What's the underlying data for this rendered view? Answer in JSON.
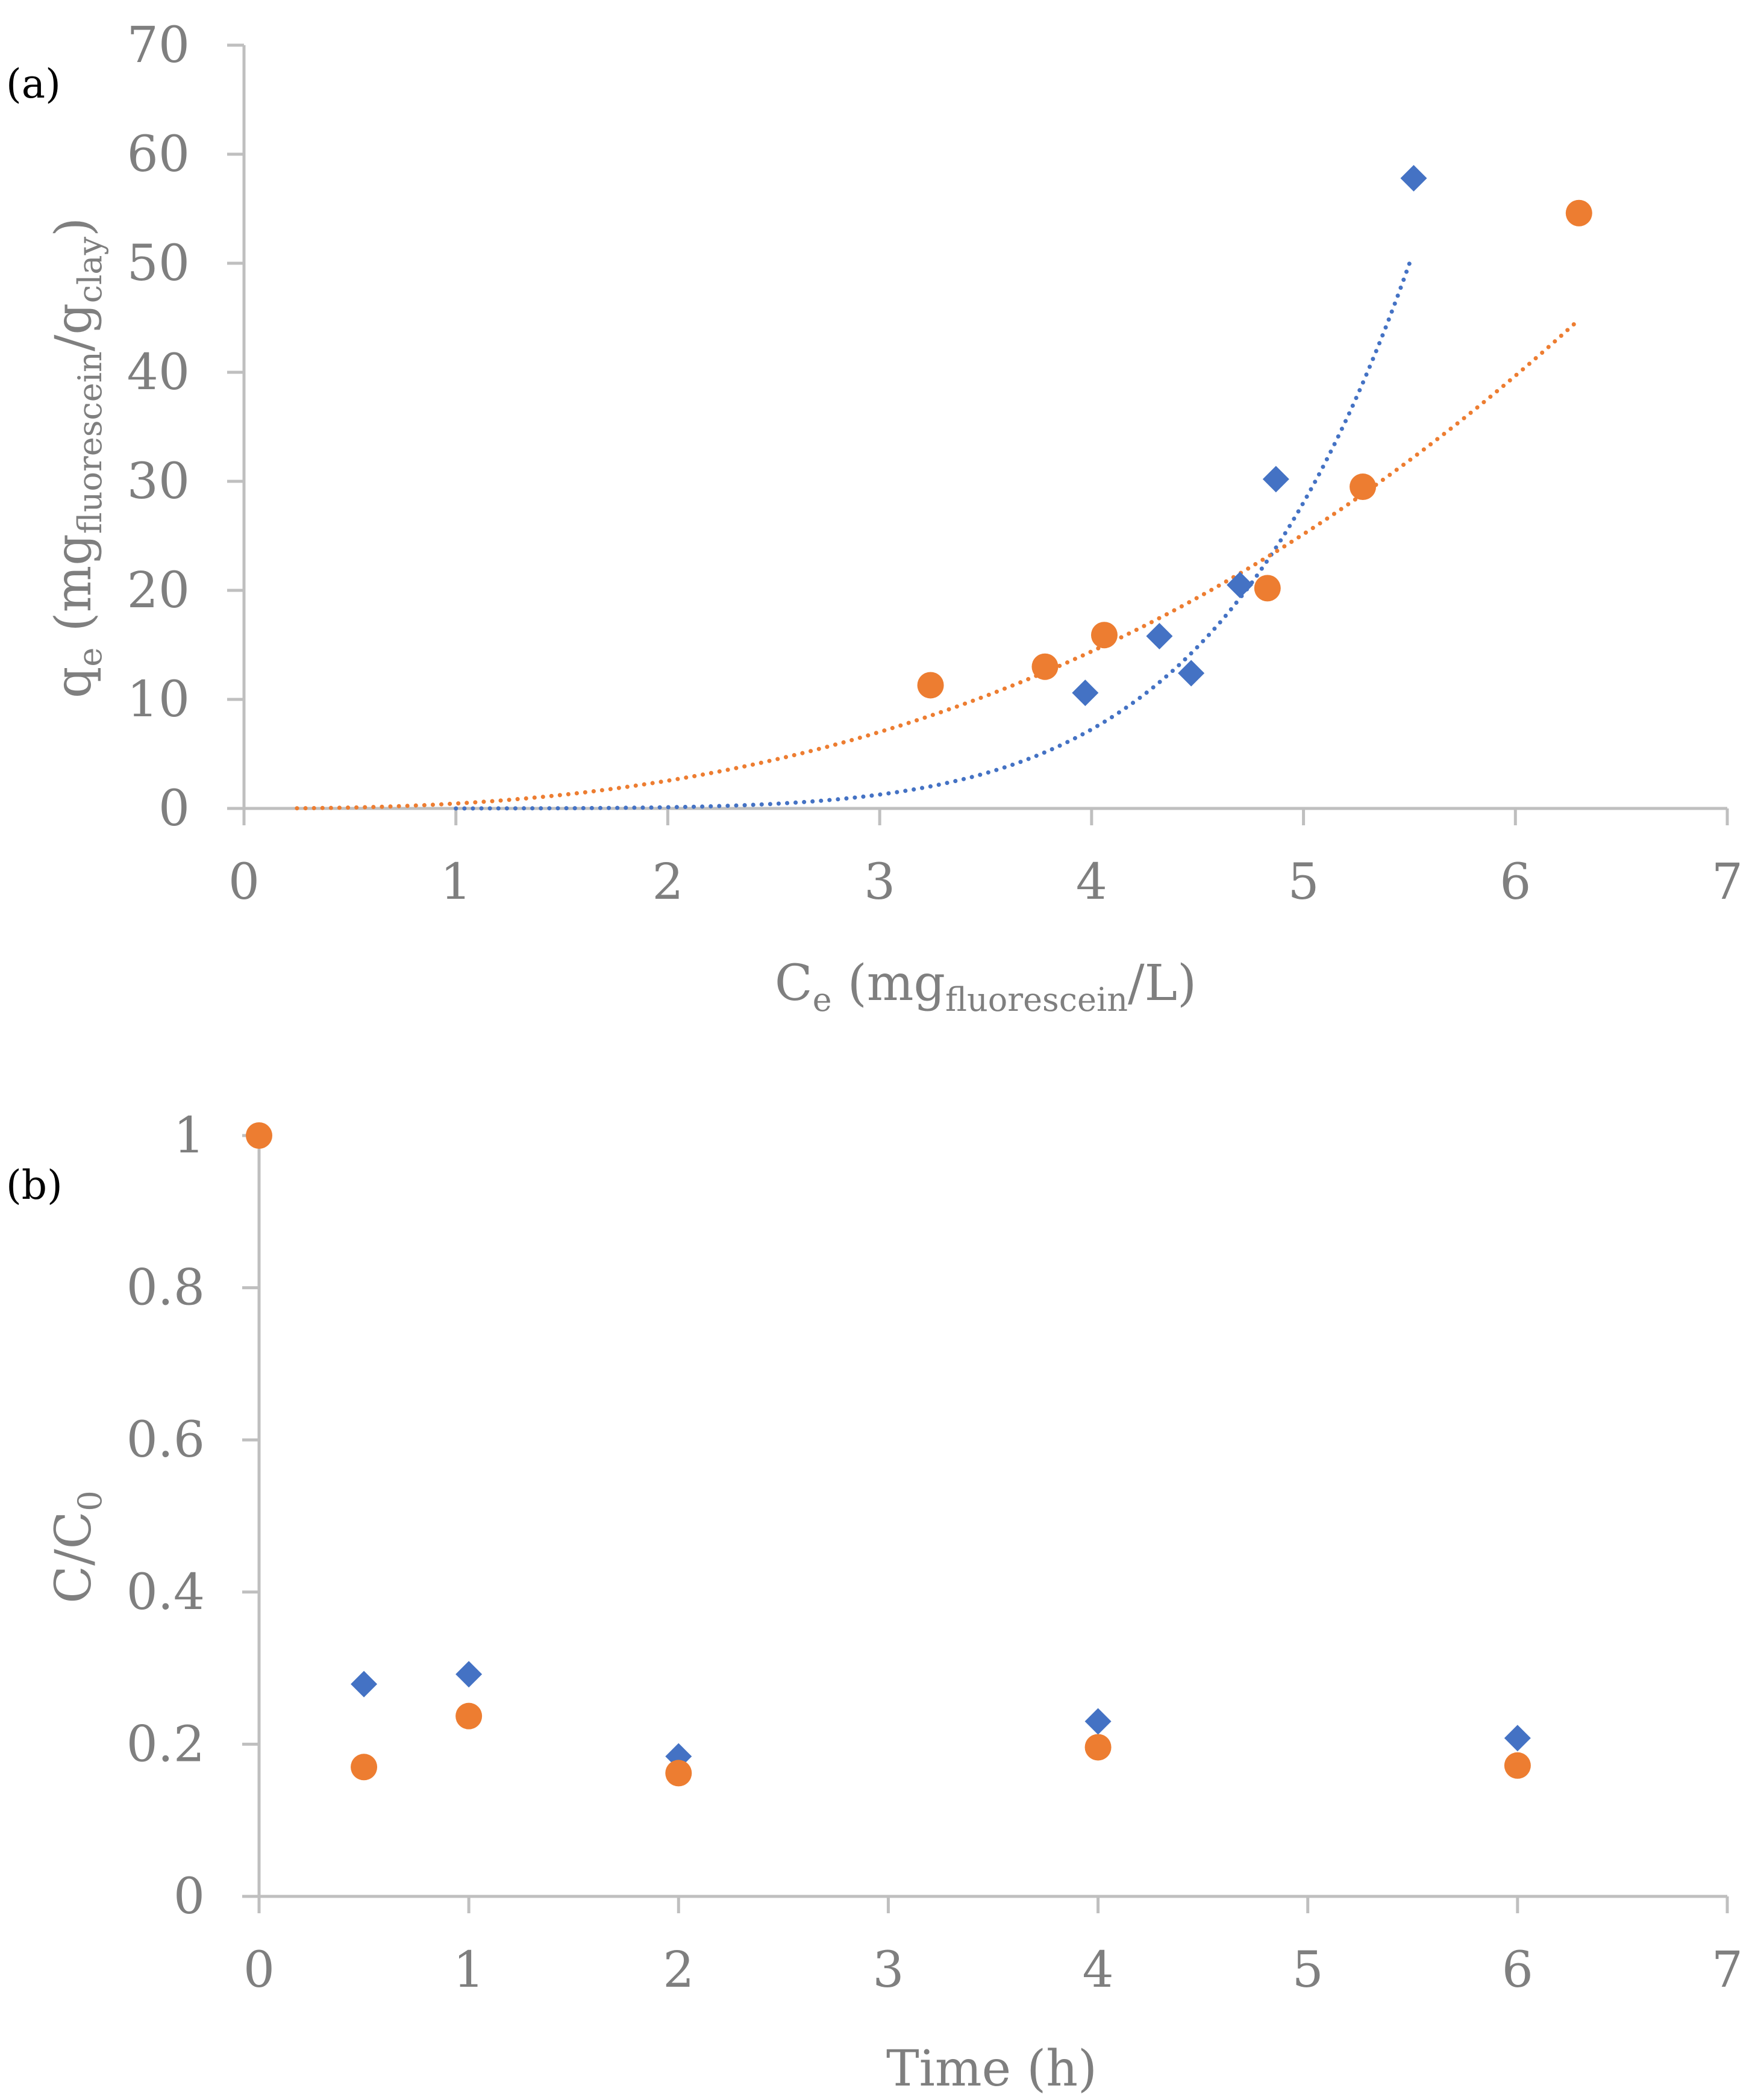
{
  "colors": {
    "series_blue": "#4472c4",
    "series_orange": "#ed7d31",
    "axis": "#bfbfbf",
    "text": "#7f7f7f"
  },
  "chart_data": [
    {
      "type": "scatter",
      "panel_label": "(a)",
      "title": "",
      "xlabel": "Ce (mgfluorescein/L)",
      "xlabel_parts": {
        "main": "C",
        "sub1": "e",
        "mid": " (mg",
        "sub2": "fluorescein",
        "tail": "/L)"
      },
      "ylabel": "qe (mgfluorescein/gclay)",
      "ylabel_parts": {
        "main": "q",
        "sub1": "e",
        "mid": " (mg",
        "sub2": "fluorescein",
        "mid2": "/g",
        "sub3": "clay",
        "tail": ")"
      },
      "xlim": [
        0,
        7
      ],
      "ylim": [
        0,
        70
      ],
      "xticks": [
        "0",
        "1",
        "2",
        "3",
        "4",
        "5",
        "6",
        "7"
      ],
      "yticks": [
        "0",
        "10",
        "20",
        "30",
        "40",
        "50",
        "60",
        "70"
      ],
      "grid": false,
      "legend": "none",
      "series": [
        {
          "name": "blue diamonds",
          "marker": "diamond",
          "color": "#4472c4",
          "x": [
            3.97,
            4.32,
            4.47,
            4.7,
            4.87,
            5.52
          ],
          "y": [
            10.6,
            15.8,
            12.4,
            20.5,
            30.2,
            57.8
          ],
          "trendline": {
            "kind": "power",
            "a": 0.00163,
            "b": 6.06,
            "x_start": 1.0,
            "x_end": 5.5
          }
        },
        {
          "name": "orange circles",
          "marker": "circle",
          "color": "#ed7d31",
          "x": [
            3.24,
            3.78,
            4.06,
            4.83,
            5.28,
            6.3
          ],
          "y": [
            11.3,
            13.0,
            15.9,
            20.2,
            29.5,
            54.6
          ],
          "trendline": {
            "kind": "power",
            "a": 0.45,
            "b": 2.5,
            "x_start": 0.25,
            "x_end": 6.3
          }
        }
      ]
    },
    {
      "type": "scatter",
      "panel_label": "(b)",
      "title": "",
      "xlabel": "Time (h)",
      "ylabel": "C/C0",
      "ylabel_parts": {
        "main": "C/C",
        "sub1": "0"
      },
      "xlim": [
        0,
        7
      ],
      "ylim": [
        0,
        1
      ],
      "xticks": [
        "0",
        "1",
        "2",
        "3",
        "4",
        "5",
        "6",
        "7"
      ],
      "yticks": [
        "0",
        "0.2",
        "0.4",
        "0.6",
        "0.8",
        "1"
      ],
      "grid": false,
      "legend": "none",
      "series": [
        {
          "name": "blue diamonds",
          "marker": "diamond",
          "color": "#4472c4",
          "x": [
            0.5,
            1,
            2,
            4,
            6
          ],
          "y": [
            0.279,
            0.292,
            0.184,
            0.23,
            0.208
          ]
        },
        {
          "name": "orange circles",
          "marker": "circle",
          "color": "#ed7d31",
          "x": [
            0,
            0.5,
            1,
            2,
            4,
            6
          ],
          "y": [
            1.0,
            0.17,
            0.237,
            0.162,
            0.196,
            0.172
          ]
        }
      ]
    }
  ]
}
